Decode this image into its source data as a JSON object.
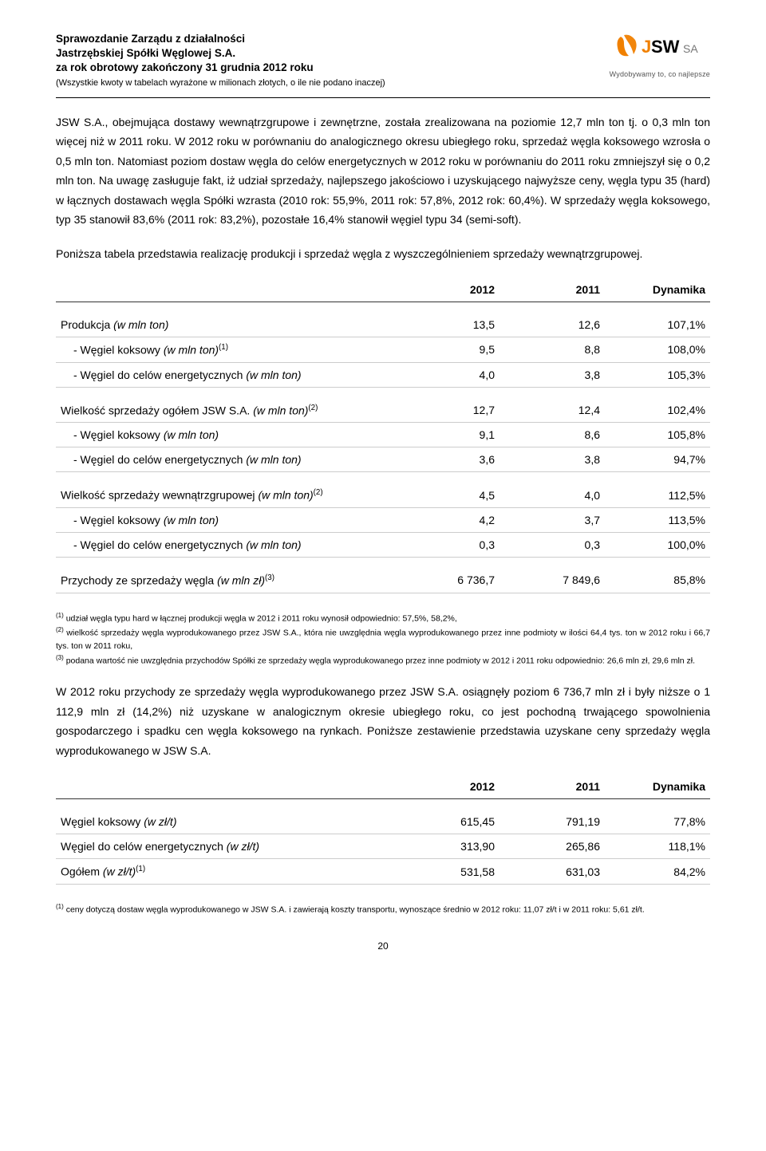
{
  "header": {
    "line1": "Sprawozdanie Zarządu z działalności",
    "line2": "Jastrzębskiej Spółki Węglowej S.A.",
    "line3": "za rok obrotowy zakończony 31 grudnia 2012 roku",
    "line4": "(Wszystkie kwoty w tabelach wyrażone w milionach złotych, o ile nie podano inaczej)"
  },
  "logo": {
    "text_j": "J",
    "text_sw": "SW",
    "text_sa": "SA",
    "tagline": "Wydobywamy to, co najlepsze",
    "color_orange": "#f08000",
    "color_black": "#000000",
    "color_grey": "#777777"
  },
  "para1": "JSW S.A., obejmująca dostawy wewnątrzgrupowe i zewnętrzne, została zrealizowana na poziomie 12,7 mln ton tj. o 0,3 mln ton więcej niż w 2011 roku. W 2012 roku w porównaniu do analogicznego okresu ubiegłego roku, sprzedaż węgla koksowego wzrosła o 0,5 mln ton. Natomiast poziom dostaw węgla do celów energetycznych w 2012 roku w porównaniu do 2011 roku zmniejszył się o 0,2 mln ton. Na uwagę zasługuje fakt, iż udział sprzedaży, najlepszego jakościowo i uzyskującego najwyższe ceny, węgla typu 35 (hard) w łącznych dostawach węgla Spółki wzrasta (2010 rok: 55,9%, 2011 rok: 57,8%, 2012 rok: 60,4%). W sprzedaży węgla koksowego, typ 35 stanowił 83,6% (2011 rok: 83,2%), pozostałe 16,4% stanowił węgiel typu 34 (semi-soft).",
  "para2": "Poniższa tabela przedstawia realizację produkcji i sprzedaż węgla z wyszczególnieniem sprzedaży wewnątrzgrupowej.",
  "table1": {
    "headers": [
      "",
      "2012",
      "2011",
      "Dynamika"
    ],
    "rows": [
      {
        "label": "Produkcja (w mln ton)",
        "v": [
          "13,5",
          "12,6",
          "107,1%"
        ],
        "section": true
      },
      {
        "label": "- Węgiel koksowy (w mln ton)",
        "sup": "(1)",
        "v": [
          "9,5",
          "8,8",
          "108,0%"
        ],
        "indent": true
      },
      {
        "label": "- Węgiel do celów energetycznych (w mln ton)",
        "v": [
          "4,0",
          "3,8",
          "105,3%"
        ],
        "indent": true
      },
      {
        "label": "Wielkość sprzedaży ogółem JSW S.A. (w mln ton)",
        "sup": "(2)",
        "v": [
          "12,7",
          "12,4",
          "102,4%"
        ],
        "section": true
      },
      {
        "label": "- Węgiel koksowy (w mln ton)",
        "v": [
          "9,1",
          "8,6",
          "105,8%"
        ],
        "indent": true
      },
      {
        "label": "- Węgiel do celów energetycznych (w mln ton)",
        "v": [
          "3,6",
          "3,8",
          "94,7%"
        ],
        "indent": true
      },
      {
        "label": "Wielkość sprzedaży wewnątrzgrupowej (w mln ton)",
        "sup": "(2)",
        "v": [
          "4,5",
          "4,0",
          "112,5%"
        ],
        "section": true
      },
      {
        "label": "- Węgiel koksowy (w mln ton)",
        "v": [
          "4,2",
          "3,7",
          "113,5%"
        ],
        "indent": true
      },
      {
        "label": "- Węgiel do celów energetycznych (w mln ton)",
        "v": [
          "0,3",
          "0,3",
          "100,0%"
        ],
        "indent": true
      },
      {
        "label": "Przychody ze sprzedaży węgla (w mln zł)",
        "sup": "(3)",
        "v": [
          "6 736,7",
          "7 849,6",
          "85,8%"
        ],
        "section": true
      }
    ]
  },
  "footnotes1": [
    {
      "sup": "(1)",
      "text": " udział węgla typu hard w łącznej produkcji węgla w 2012 i 2011 roku wynosił odpowiednio: 57,5%, 58,2%,"
    },
    {
      "sup": "(2)",
      "text": " wielkość sprzedaży węgla wyprodukowanego przez JSW S.A., która nie uwzględnia węgla wyprodukowanego przez inne podmioty w ilości 64,4 tys. ton w 2012 roku i 66,7 tys. ton w 2011 roku,"
    },
    {
      "sup": "(3)",
      "text": " podana wartość nie uwzględnia przychodów Spółki ze sprzedaży węgla wyprodukowanego przez inne podmioty w 2012 i 2011 roku odpowiednio: 26,6 mln zł, 29,6 mln zł."
    }
  ],
  "para3": "W 2012 roku przychody ze sprzedaży węgla wyprodukowanego przez JSW S.A. osiągnęły poziom 6 736,7 mln zł i były niższe o 1 112,9 mln zł (14,2%) niż uzyskane w analogicznym okresie ubiegłego roku, co jest pochodną trwającego spowolnienia gospodarczego i spadku cen węgla koksowego na rynkach. Poniższe zestawienie przedstawia uzyskane ceny sprzedaży węgla wyprodukowanego w JSW S.A.",
  "table2": {
    "headers": [
      "",
      "2012",
      "2011",
      "Dynamika"
    ],
    "rows": [
      {
        "label": "Węgiel koksowy (w zł/t)",
        "v": [
          "615,45",
          "791,19",
          "77,8%"
        ],
        "section": true
      },
      {
        "label": "Węgiel do celów energetycznych (w zł/t)",
        "v": [
          "313,90",
          "265,86",
          "118,1%"
        ]
      },
      {
        "label": "Ogółem (w zł/t)",
        "sup": "(1)",
        "v": [
          "531,58",
          "631,03",
          "84,2%"
        ]
      }
    ]
  },
  "footnotes2": [
    {
      "sup": "(1)",
      "text": " ceny dotyczą dostaw węgla wyprodukowanego w JSW S.A. i zawierają koszty transportu, wynoszące średnio w 2012 roku: 11,07 zł/t i w 2011 roku: 5,61 zł/t."
    }
  ],
  "page_number": "20"
}
